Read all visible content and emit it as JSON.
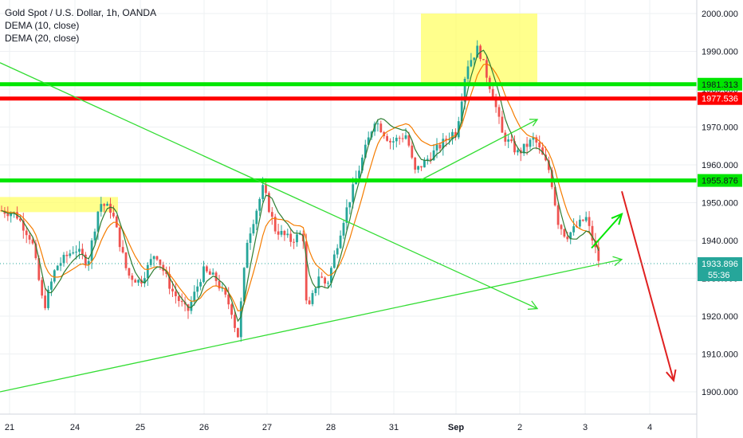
{
  "chart_data": {
    "type": "candlestick",
    "title": "Gold Spot / U.S. Dollar, 1h, OANDA",
    "indicators": [
      "DEMA (10, close)",
      "DEMA (20, close)"
    ],
    "x_tick_labels": [
      "21",
      "24",
      "25",
      "26",
      "27",
      "28",
      "31",
      "Sep",
      "2",
      "3",
      "4"
    ],
    "y_ticks": [
      1900,
      1910,
      1920,
      1930,
      1940,
      1950,
      1960,
      1970,
      1980,
      1990,
      2000
    ],
    "y_tick_labels": [
      "1900.000",
      "1910.000",
      "1920.000",
      "1930.000",
      "1940.000",
      "1950.000",
      "1960.000",
      "1970.000",
      "1980.000",
      "1990.000",
      "2000.000"
    ],
    "ylim": [
      1893,
      2003
    ],
    "colors": {
      "up": "#26a69a",
      "down": "#ef5350",
      "dema10": "#2e7d32",
      "dema20": "#f57c00",
      "green_level": "#00e600",
      "red_level": "#ff0000",
      "trend": "#33dd33",
      "zone": "#ffff66",
      "arrow_down": "#e02020"
    },
    "levels": [
      {
        "price": 1981.313,
        "label": "1981.313",
        "color": "#00e600"
      },
      {
        "price": 1977.536,
        "label": "1977.536",
        "color": "#ff0000"
      },
      {
        "price": 1955.876,
        "label": "1955.876",
        "color": "#00e600"
      }
    ],
    "last_price": {
      "price": 1933.896,
      "label": "1933.896",
      "countdown": "55:36"
    },
    "zones": [
      {
        "x_from": "Aug 21",
        "x_to": "Aug 24 late",
        "y_from": 1947.5,
        "y_to": 1951.5
      },
      {
        "x_from": "Aug 31 late",
        "x_to": "Sep 1 late",
        "y_from": 1981.313,
        "y_to": 2000
      }
    ],
    "anchors": [
      {
        "label": "21",
        "value": 1948
      },
      {
        "label": "21b",
        "value": 1947
      },
      {
        "label": "21c",
        "value": 1940
      },
      {
        "label": "21d",
        "value": 1922
      },
      {
        "label": "21e",
        "value": 1933
      },
      {
        "label": "24a",
        "value": 1938
      },
      {
        "label": "24b",
        "value": 1934
      },
      {
        "label": "24c",
        "value": 1950
      },
      {
        "label": "24d",
        "value": 1948
      },
      {
        "label": "24e",
        "value": 1931
      },
      {
        "label": "25a",
        "value": 1929
      },
      {
        "label": "25b",
        "value": 1937
      },
      {
        "label": "25c",
        "value": 1927
      },
      {
        "label": "26a",
        "value": 1921
      },
      {
        "label": "26b",
        "value": 1932
      },
      {
        "label": "26c",
        "value": 1930
      },
      {
        "label": "26d",
        "value": 1922
      },
      {
        "label": "26e",
        "value": 1914
      },
      {
        "label": "27a",
        "value": 1940
      },
      {
        "label": "27b",
        "value": 1954
      },
      {
        "label": "27c",
        "value": 1943
      },
      {
        "label": "27d",
        "value": 1940
      },
      {
        "label": "27e",
        "value": 1942
      },
      {
        "label": "27f",
        "value": 1920
      },
      {
        "label": "28a",
        "value": 1931
      },
      {
        "label": "28b",
        "value": 1928
      },
      {
        "label": "28c",
        "value": 1945
      },
      {
        "label": "28d",
        "value": 1962
      },
      {
        "label": "31a",
        "value": 1972
      },
      {
        "label": "31b",
        "value": 1966
      },
      {
        "label": "31c",
        "value": 1968
      },
      {
        "label": "31d",
        "value": 1958
      },
      {
        "label": "31e",
        "value": 1969
      },
      {
        "label": "Sep1a",
        "value": 1968
      },
      {
        "label": "Sep1b",
        "value": 1986
      },
      {
        "label": "Sep1c",
        "value": 1991
      },
      {
        "label": "Sep1d",
        "value": 1977
      },
      {
        "label": "2a",
        "value": 1968
      },
      {
        "label": "2b",
        "value": 1963
      },
      {
        "label": "2c",
        "value": 1967
      },
      {
        "label": "2d",
        "value": 1958
      },
      {
        "label": "2e",
        "value": 1945
      },
      {
        "label": "3a",
        "value": 1941
      },
      {
        "label": "3b",
        "value": 1946
      },
      {
        "label": "3c",
        "value": 1934
      }
    ],
    "trendlines": [
      {
        "from": {
          "x": "Aug 20",
          "y": 1987
        },
        "to": {
          "x": "Sep 1 late",
          "y": 1922
        }
      },
      {
        "from": {
          "x": "Aug 20",
          "y": 1900
        },
        "to": {
          "x": "Sep 4",
          "y": 1935
        }
      },
      {
        "from": {
          "x": "Aug 31 late",
          "y": 1956
        },
        "to": {
          "x": "Sep 1 late",
          "y": 1972
        }
      }
    ],
    "arrows": [
      {
        "from": {
          "x": "Sep 3 early",
          "y": 1938
        },
        "to": {
          "x": "Sep 3 late",
          "y": 1947
        },
        "color": "#00e600"
      },
      {
        "from": {
          "x": "Sep 3 late",
          "y": 1953
        },
        "to": {
          "x": "Sep 4 late",
          "y": 1903
        },
        "color": "#e02020"
      }
    ],
    "grid": true
  }
}
